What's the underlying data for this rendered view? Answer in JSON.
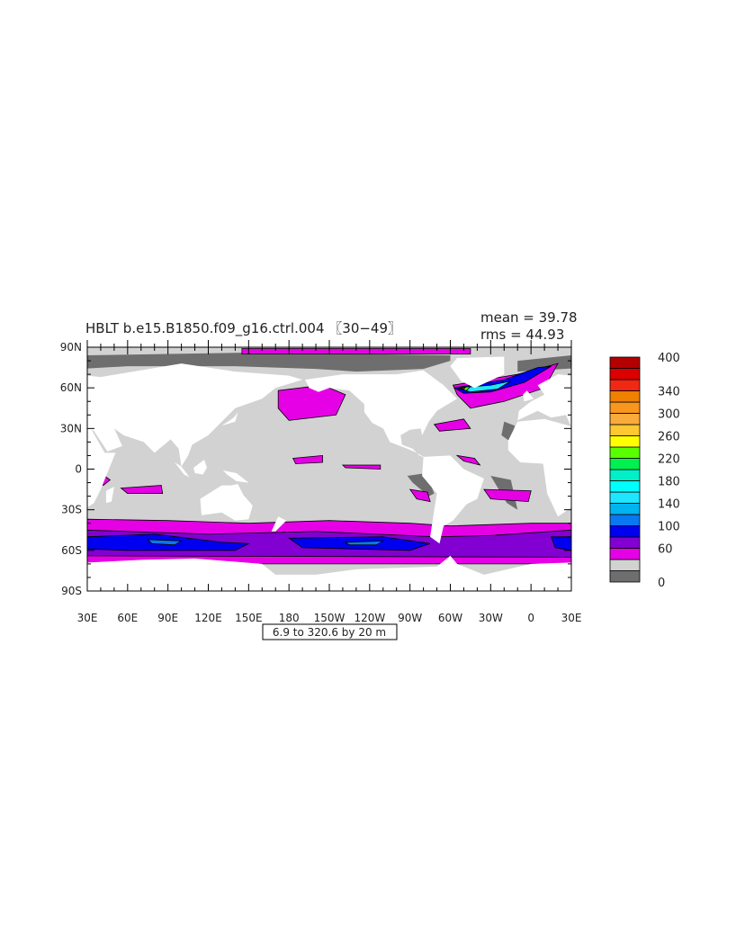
{
  "chart_data": {
    "type": "heatmap",
    "subtype": "filled-contour-map",
    "title": "HBLT b.e15.B1850.f09_g16.ctrl.004 〖30−49〗",
    "stats": {
      "mean": "mean = 39.78",
      "rms": "rms = 44.93"
    },
    "contour_info": "6.9 to 320.6 by 20 m",
    "x_axis": {
      "range": [
        30,
        390
      ],
      "ticks": [
        "30E",
        "60E",
        "90E",
        "120E",
        "150E",
        "180",
        "150W",
        "120W",
        "90W",
        "60W",
        "30W",
        "0",
        "30E"
      ]
    },
    "y_axis": {
      "range": [
        -90,
        90
      ],
      "ticks": [
        "90N",
        "60N",
        "30N",
        "0",
        "30S",
        "60S",
        "90S"
      ]
    },
    "colorbar": {
      "levels": [
        0,
        20,
        40,
        60,
        80,
        100,
        120,
        140,
        160,
        180,
        200,
        220,
        240,
        260,
        280,
        300,
        320,
        340,
        360,
        380,
        400
      ],
      "labels": [
        "400",
        "340",
        "300",
        "260",
        "220",
        "180",
        "140",
        "100",
        "60",
        "0"
      ],
      "label_values": [
        400,
        340,
        300,
        260,
        220,
        180,
        140,
        100,
        60,
        0
      ],
      "colors": [
        "#6e6e6e",
        "#d2d2d2",
        "#e600e6",
        "#8200d2",
        "#0000f0",
        "#0a78f0",
        "#00b4f0",
        "#1ee6ff",
        "#00ffff",
        "#00f0c8",
        "#00f050",
        "#5aff00",
        "#ffff00",
        "#ffc832",
        "#fbab3b",
        "#f8961e",
        "#f08000",
        "#f02814",
        "#dc0000",
        "#b40000"
      ]
    },
    "colors": {
      "land": "#ffffff",
      "ocean_low": "#d2d2d2"
    }
  }
}
